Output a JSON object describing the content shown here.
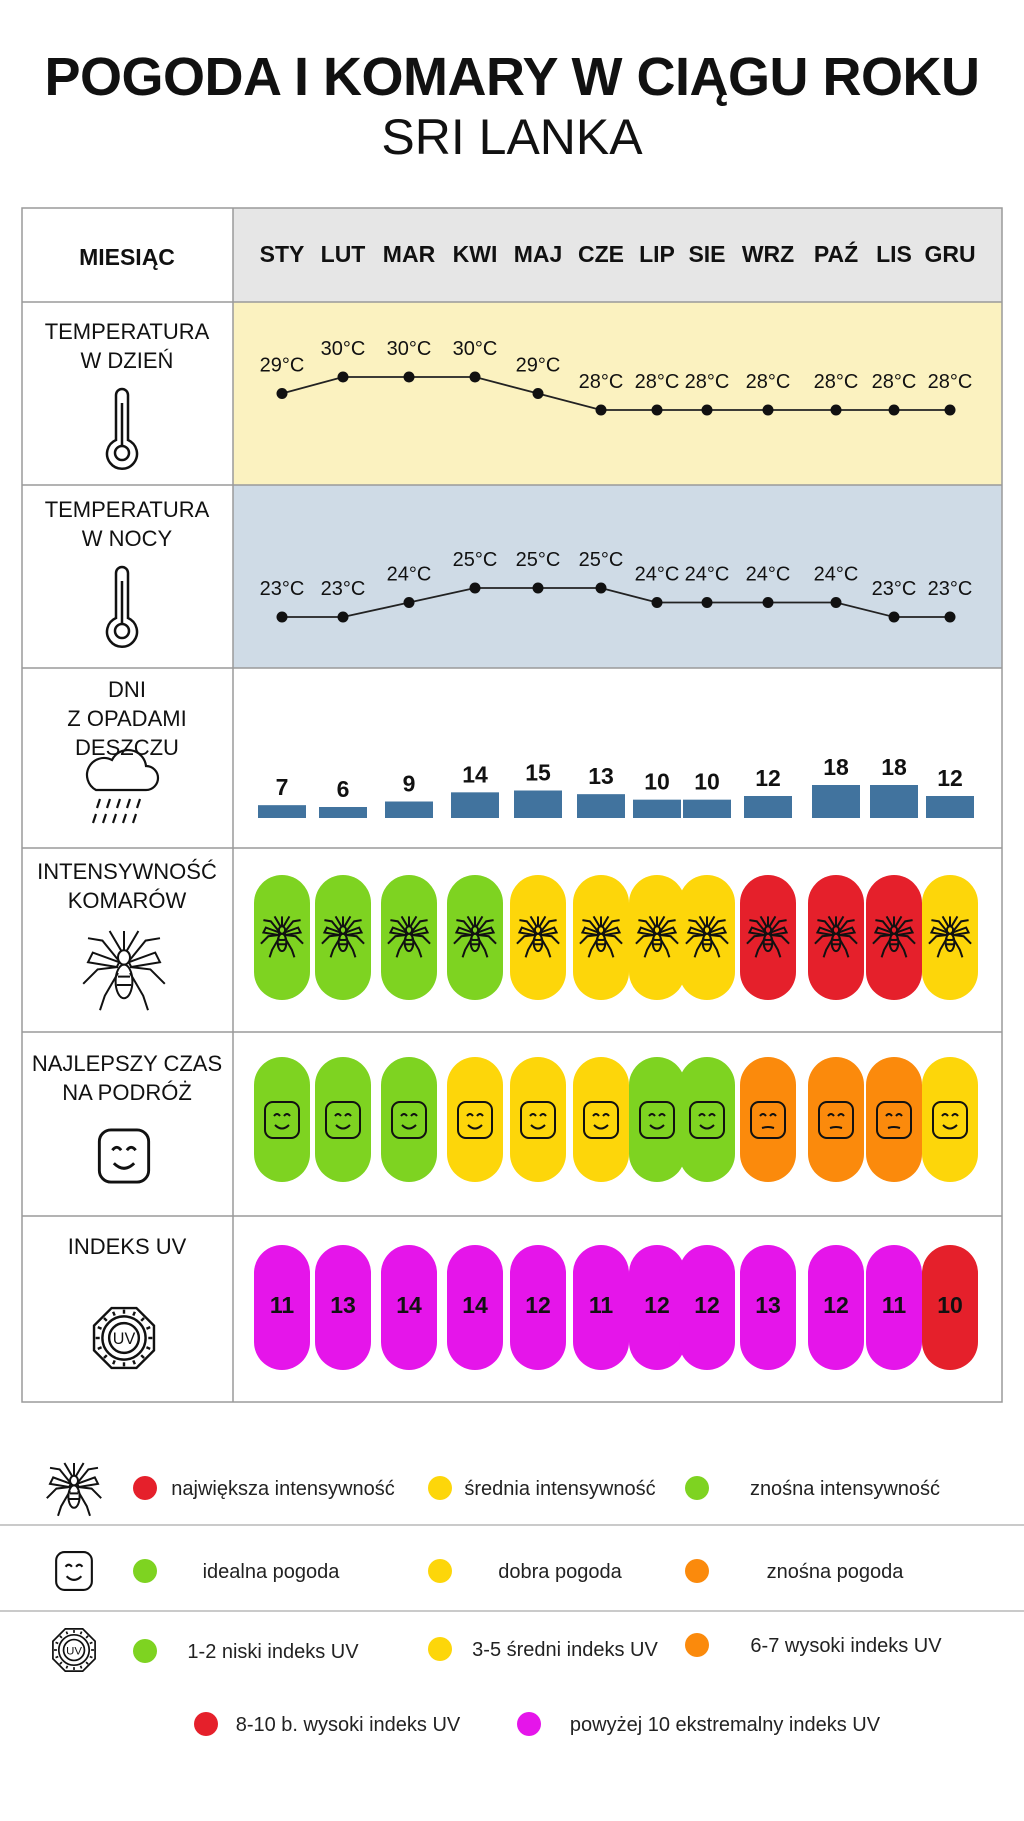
{
  "title": "POGODA I KOMARY W CIĄGU ROKU",
  "subtitle": "SRI LANKA",
  "chart_data": {
    "type": "table",
    "month_header": "MIESIĄC",
    "months": [
      "STY",
      "LUT",
      "MAR",
      "KWI",
      "MAJ",
      "CZE",
      "LIP",
      "SIE",
      "WRZ",
      "PAŹ",
      "LIS",
      "GRU"
    ],
    "rows": {
      "day_temp": {
        "label": [
          "TEMPERATURA",
          "W DZIEŃ"
        ],
        "type": "line",
        "unit": "°C",
        "values": [
          29,
          30,
          30,
          30,
          29,
          28,
          28,
          28,
          28,
          28,
          28,
          28
        ],
        "labels": [
          "29°C",
          "30°C",
          "30°C",
          "30°C",
          "29°C",
          "28°C",
          "28°C",
          "28°C",
          "28°C",
          "28°C",
          "28°C",
          "28°C"
        ],
        "color": "#fbf2c0"
      },
      "night_temp": {
        "label": [
          "TEMPERATURA",
          "W NOCY"
        ],
        "type": "line",
        "unit": "°C",
        "values": [
          23,
          23,
          24,
          25,
          25,
          25,
          24,
          24,
          24,
          24,
          23,
          23
        ],
        "labels": [
          "23°C",
          "23°C",
          "24°C",
          "25°C",
          "25°C",
          "25°C",
          "24°C",
          "24°C",
          "24°C",
          "24°C",
          "23°C",
          "23°C"
        ],
        "color": "#cfdbe6"
      },
      "rain_days": {
        "label": [
          "DNI",
          "Z OPADAMI",
          "DESZCZU"
        ],
        "type": "bar",
        "values": [
          7,
          6,
          9,
          14,
          15,
          13,
          10,
          10,
          12,
          18,
          18,
          12
        ],
        "labels": [
          "7",
          "6",
          "9",
          "14",
          "15",
          "13",
          "10",
          "10",
          "12",
          "18",
          "18",
          "12"
        ],
        "bar_color": "#41739e"
      },
      "mosquito": {
        "label": [
          "INTENSYWNOŚĆ",
          "KOMARÓW"
        ],
        "type": "category",
        "values": [
          "green",
          "green",
          "green",
          "green",
          "yellow",
          "yellow",
          "yellow",
          "yellow",
          "red",
          "red",
          "red",
          "yellow"
        ]
      },
      "travel": {
        "label": [
          "NAJLEPSZY CZAS",
          "NA PODRÓŻ"
        ],
        "type": "category",
        "values": [
          "green",
          "green",
          "green",
          "yellow",
          "yellow",
          "yellow",
          "green",
          "green",
          "orange",
          "orange",
          "orange",
          "yellow"
        ]
      },
      "uv": {
        "label": [
          "INDEKS UV"
        ],
        "type": "category",
        "values": [
          11,
          13,
          14,
          14,
          12,
          11,
          12,
          12,
          13,
          12,
          11,
          10
        ],
        "labels": [
          "11",
          "13",
          "14",
          "14",
          "12",
          "11",
          "12",
          "12",
          "13",
          "12",
          "11",
          "10"
        ],
        "colors": [
          "magenta",
          "magenta",
          "magenta",
          "magenta",
          "magenta",
          "magenta",
          "magenta",
          "magenta",
          "magenta",
          "magenta",
          "magenta",
          "red"
        ]
      }
    },
    "palette": {
      "green": "#7ed321",
      "yellow": "#fdd60a",
      "red": "#e5202b",
      "orange": "#fb8a0c",
      "magenta": "#e515ea"
    }
  },
  "legend": {
    "mosquito": [
      {
        "color": "red",
        "text": "największa intensywność"
      },
      {
        "color": "yellow",
        "text": "średnia intensywność"
      },
      {
        "color": "green",
        "text": "znośna intensywność"
      }
    ],
    "weather": [
      {
        "color": "green",
        "text": "idealna pogoda"
      },
      {
        "color": "yellow",
        "text": "dobra pogoda"
      },
      {
        "color": "orange",
        "text": "znośna pogoda"
      }
    ],
    "uv": [
      {
        "color": "green",
        "text": "1-2 niski indeks UV"
      },
      {
        "color": "yellow",
        "text": "3-5 średni indeks UV"
      },
      {
        "color": "orange",
        "text": "6-7 wysoki indeks UV"
      },
      {
        "color": "red",
        "text": "8-10 b. wysoki indeks UV"
      },
      {
        "color": "magenta",
        "text": "powyżej 10 ekstremalny indeks UV"
      }
    ],
    "uv_icon_text": "UV"
  }
}
